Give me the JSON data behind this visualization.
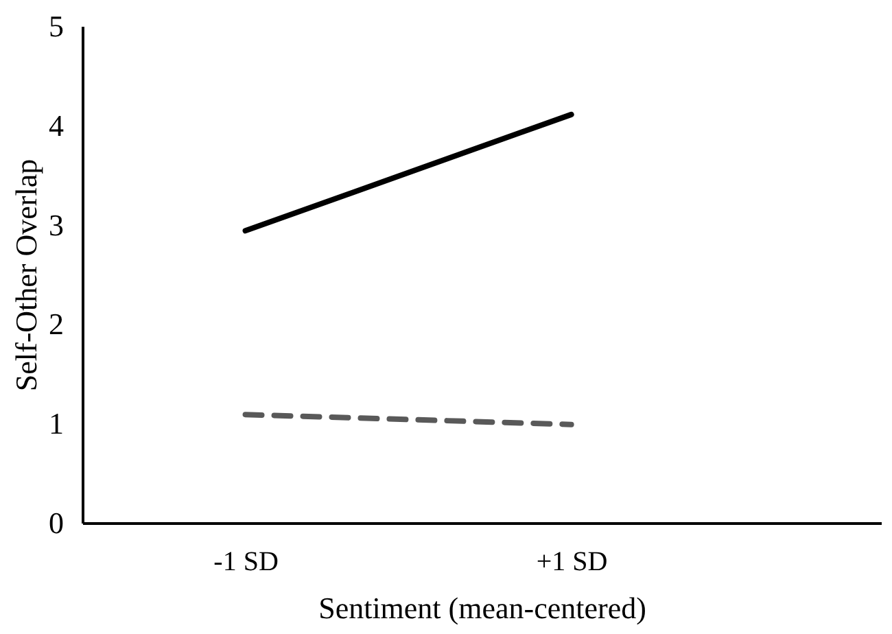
{
  "chart_data": {
    "type": "line",
    "categories": [
      "-1 SD",
      "+1 SD"
    ],
    "series": [
      {
        "color": "#000000",
        "values": [
          2.94,
          4.11
        ],
        "line_style": "solid"
      },
      {
        "color": "#595959",
        "values": [
          1.09,
          0.99
        ],
        "line_style": "dashed"
      }
    ],
    "xlabel": "Sentiment (mean-centered)",
    "ylabel": "Self-Other Overlap",
    "ylim": [
      0,
      5
    ],
    "yticks": [
      0,
      1,
      2,
      3,
      4,
      5
    ],
    "grid": false,
    "marker": "none"
  }
}
